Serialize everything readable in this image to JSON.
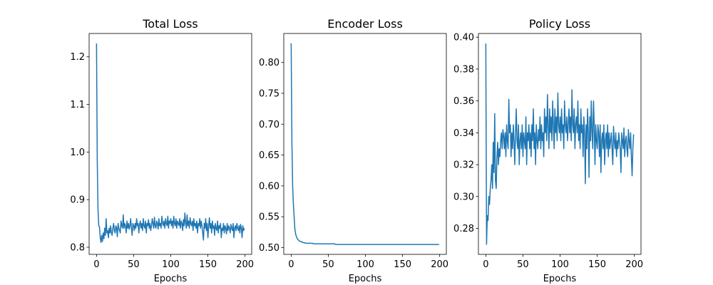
{
  "chart_data": [
    {
      "type": "line",
      "title": "Total Loss",
      "xlabel": "Epochs",
      "color": "#1f77b4",
      "xlim": [
        -9.95,
        208.95
      ],
      "xticks": [
        0,
        50,
        100,
        150,
        200
      ],
      "ylim": [
        0.785,
        1.249
      ],
      "yticks": [
        0.8,
        0.9,
        {
          "value": 1,
          "label": "1.0"
        },
        1.1,
        1.2
      ],
      "x": [
        0,
        1,
        2,
        3,
        4,
        5,
        6,
        7,
        8,
        9,
        10,
        11,
        12,
        13,
        14,
        15,
        16,
        17,
        18,
        19,
        20,
        21,
        22,
        23,
        24,
        25,
        26,
        27,
        28,
        29,
        30,
        31,
        32,
        33,
        34,
        35,
        36,
        37,
        38,
        39,
        40,
        41,
        42,
        43,
        44,
        45,
        46,
        47,
        48,
        49,
        50,
        51,
        52,
        53,
        54,
        55,
        56,
        57,
        58,
        59,
        60,
        61,
        62,
        63,
        64,
        65,
        66,
        67,
        68,
        69,
        70,
        71,
        72,
        73,
        74,
        75,
        76,
        77,
        78,
        79,
        80,
        81,
        82,
        83,
        84,
        85,
        86,
        87,
        88,
        89,
        90,
        91,
        92,
        93,
        94,
        95,
        96,
        97,
        98,
        99,
        100,
        101,
        102,
        103,
        104,
        105,
        106,
        107,
        108,
        109,
        110,
        111,
        112,
        113,
        114,
        115,
        116,
        117,
        118,
        119,
        120,
        121,
        122,
        123,
        124,
        125,
        126,
        127,
        128,
        129,
        130,
        131,
        132,
        133,
        134,
        135,
        136,
        137,
        138,
        139,
        140,
        141,
        142,
        143,
        144,
        145,
        146,
        147,
        148,
        149,
        150,
        151,
        152,
        153,
        154,
        155,
        156,
        157,
        158,
        159,
        160,
        161,
        162,
        163,
        164,
        165,
        166,
        167,
        168,
        169,
        170,
        171,
        172,
        173,
        174,
        175,
        176,
        177,
        178,
        179,
        180,
        181,
        182,
        183,
        184,
        185,
        186,
        187,
        188,
        189,
        190,
        191,
        192,
        193,
        194,
        195,
        196,
        197,
        198,
        199
      ],
      "values": [
        1.228,
        0.98,
        0.88,
        0.845,
        0.843,
        0.82,
        0.81,
        0.825,
        0.812,
        0.83,
        0.818,
        0.84,
        0.825,
        0.86,
        0.83,
        0.835,
        0.82,
        0.84,
        0.83,
        0.845,
        0.83,
        0.825,
        0.84,
        0.85,
        0.835,
        0.83,
        0.845,
        0.84,
        0.822,
        0.85,
        0.84,
        0.835,
        0.83,
        0.855,
        0.845,
        0.84,
        0.868,
        0.84,
        0.85,
        0.845,
        0.83,
        0.855,
        0.84,
        0.85,
        0.838,
        0.845,
        0.86,
        0.84,
        0.825,
        0.85,
        0.845,
        0.835,
        0.85,
        0.84,
        0.86,
        0.845,
        0.85,
        0.83,
        0.848,
        0.855,
        0.84,
        0.85,
        0.835,
        0.86,
        0.845,
        0.84,
        0.855,
        0.83,
        0.85,
        0.845,
        0.858,
        0.84,
        0.85,
        0.835,
        0.845,
        0.86,
        0.85,
        0.84,
        0.863,
        0.845,
        0.84,
        0.855,
        0.85,
        0.838,
        0.86,
        0.845,
        0.85,
        0.84,
        0.865,
        0.85,
        0.845,
        0.855,
        0.84,
        0.86,
        0.85,
        0.845,
        0.865,
        0.84,
        0.855,
        0.85,
        0.86,
        0.845,
        0.855,
        0.84,
        0.865,
        0.85,
        0.845,
        0.86,
        0.84,
        0.855,
        0.85,
        0.845,
        0.86,
        0.84,
        0.855,
        0.85,
        0.835,
        0.858,
        0.845,
        0.872,
        0.85,
        0.84,
        0.868,
        0.845,
        0.855,
        0.84,
        0.862,
        0.85,
        0.845,
        0.855,
        0.835,
        0.86,
        0.845,
        0.85,
        0.84,
        0.855,
        0.83,
        0.85,
        0.845,
        0.86,
        0.84,
        0.855,
        0.845,
        0.83,
        0.815,
        0.85,
        0.84,
        0.86,
        0.835,
        0.85,
        0.82,
        0.845,
        0.862,
        0.84,
        0.85,
        0.83,
        0.855,
        0.84,
        0.845,
        0.825,
        0.85,
        0.84,
        0.835,
        0.855,
        0.83,
        0.845,
        0.84,
        0.85,
        0.82,
        0.84,
        0.835,
        0.85,
        0.83,
        0.845,
        0.84,
        0.828,
        0.85,
        0.835,
        0.845,
        0.84,
        0.83,
        0.848,
        0.84,
        0.835,
        0.85,
        0.82,
        0.84,
        0.845,
        0.835,
        0.85,
        0.84,
        0.835,
        0.845,
        0.83,
        0.848,
        0.84,
        0.82,
        0.845,
        0.835,
        0.84
      ]
    },
    {
      "type": "line",
      "title": "Encoder Loss",
      "xlabel": "Epochs",
      "color": "#1f77b4",
      "xlim": [
        -9.95,
        208.95
      ],
      "xticks": [
        0,
        50,
        100,
        150,
        200
      ],
      "ylim": [
        0.489,
        0.847
      ],
      "yticks": [
        {
          "value": 0.5,
          "label": "0.50"
        },
        0.55,
        {
          "value": 0.6,
          "label": "0.60"
        },
        0.65,
        {
          "value": 0.7,
          "label": "0.70"
        },
        0.75,
        {
          "value": 0.8,
          "label": "0.80"
        }
      ],
      "x": [
        0,
        1,
        2,
        3,
        4,
        5,
        6,
        7,
        8,
        9,
        10,
        11,
        12,
        13,
        14,
        15,
        16,
        17,
        18,
        19,
        20,
        21,
        22,
        23,
        24,
        25,
        26,
        27,
        28,
        29,
        30,
        31,
        32,
        33,
        34,
        35,
        36,
        37,
        38,
        39,
        40,
        41,
        42,
        43,
        44,
        45,
        46,
        47,
        48,
        49,
        50,
        51,
        52,
        53,
        54,
        55,
        56,
        57,
        58,
        59,
        60,
        61,
        62,
        63,
        64,
        65,
        66,
        67,
        68,
        69,
        70,
        71,
        72,
        73,
        74,
        75,
        76,
        77,
        78,
        79,
        80,
        81,
        82,
        83,
        84,
        85,
        86,
        87,
        88,
        89,
        90,
        91,
        92,
        93,
        94,
        95,
        96,
        97,
        98,
        99,
        100,
        101,
        102,
        103,
        104,
        105,
        106,
        107,
        108,
        109,
        110,
        111,
        112,
        113,
        114,
        115,
        116,
        117,
        118,
        119,
        120,
        121,
        122,
        123,
        124,
        125,
        126,
        127,
        128,
        129,
        130,
        131,
        132,
        133,
        134,
        135,
        136,
        137,
        138,
        139,
        140,
        141,
        142,
        143,
        144,
        145,
        146,
        147,
        148,
        149,
        150,
        151,
        152,
        153,
        154,
        155,
        156,
        157,
        158,
        159,
        160,
        161,
        162,
        163,
        164,
        165,
        166,
        167,
        168,
        169,
        170,
        171,
        172,
        173,
        174,
        175,
        176,
        177,
        178,
        179,
        180,
        181,
        182,
        183,
        184,
        185,
        186,
        187,
        188,
        189,
        190,
        191,
        192,
        193,
        194,
        195,
        196,
        197,
        198,
        199
      ],
      "values": [
        0.831,
        0.67,
        0.6,
        0.57,
        0.55,
        0.53,
        0.522,
        0.518,
        0.515,
        0.513,
        0.512,
        0.511,
        0.51,
        0.51,
        0.509,
        0.509,
        0.508,
        0.508,
        0.508,
        0.507,
        0.507,
        0.507,
        0.507,
        0.507,
        0.507,
        0.507,
        0.507,
        0.507,
        0.507,
        0.507,
        0.506,
        0.506,
        0.506,
        0.506,
        0.506,
        0.506,
        0.506,
        0.506,
        0.506,
        0.506,
        0.506,
        0.506,
        0.506,
        0.506,
        0.506,
        0.506,
        0.506,
        0.506,
        0.506,
        0.506,
        0.506,
        0.506,
        0.506,
        0.506,
        0.506,
        0.506,
        0.506,
        0.506,
        0.506,
        0.506,
        0.505,
        0.505,
        0.505,
        0.505,
        0.505,
        0.505,
        0.505,
        0.505,
        0.505,
        0.505,
        0.505,
        0.505,
        0.505,
        0.505,
        0.505,
        0.505,
        0.505,
        0.505,
        0.505,
        0.505,
        0.505,
        0.505,
        0.505,
        0.505,
        0.505,
        0.505,
        0.505,
        0.505,
        0.505,
        0.505,
        0.505,
        0.505,
        0.505,
        0.505,
        0.505,
        0.505,
        0.505,
        0.505,
        0.505,
        0.505,
        0.505,
        0.505,
        0.505,
        0.505,
        0.505,
        0.505,
        0.505,
        0.505,
        0.505,
        0.505,
        0.505,
        0.505,
        0.505,
        0.505,
        0.505,
        0.505,
        0.505,
        0.505,
        0.505,
        0.505,
        0.505,
        0.505,
        0.505,
        0.505,
        0.505,
        0.505,
        0.505,
        0.505,
        0.505,
        0.505,
        0.505,
        0.505,
        0.505,
        0.505,
        0.505,
        0.505,
        0.505,
        0.505,
        0.505,
        0.505,
        0.505,
        0.505,
        0.505,
        0.505,
        0.505,
        0.505,
        0.505,
        0.505,
        0.505,
        0.505,
        0.505,
        0.505,
        0.505,
        0.505,
        0.505,
        0.505,
        0.505,
        0.505,
        0.505,
        0.505,
        0.505,
        0.505,
        0.505,
        0.505,
        0.505,
        0.505,
        0.505,
        0.505,
        0.505,
        0.505,
        0.505,
        0.505,
        0.505,
        0.505,
        0.505,
        0.505,
        0.505,
        0.505,
        0.505,
        0.505,
        0.505,
        0.505,
        0.505,
        0.505,
        0.505,
        0.505,
        0.505,
        0.505,
        0.505,
        0.505,
        0.505,
        0.505,
        0.505,
        0.505,
        0.505,
        0.505,
        0.505,
        0.505,
        0.505,
        0.505
      ]
    },
    {
      "type": "line",
      "title": "Policy Loss",
      "xlabel": "Epochs",
      "color": "#1f77b4",
      "xlim": [
        -9.95,
        208.95
      ],
      "xticks": [
        0,
        50,
        100,
        150,
        200
      ],
      "ylim": [
        0.2637,
        0.4023
      ],
      "yticks": [
        0.28,
        {
          "value": 0.3,
          "label": "0.30"
        },
        0.32,
        0.34,
        0.36,
        0.38,
        {
          "value": 0.4,
          "label": "0.40"
        }
      ],
      "x": [
        0,
        1,
        2,
        3,
        4,
        5,
        6,
        7,
        8,
        9,
        10,
        11,
        12,
        13,
        14,
        15,
        16,
        17,
        18,
        19,
        20,
        21,
        22,
        23,
        24,
        25,
        26,
        27,
        28,
        29,
        30,
        31,
        32,
        33,
        34,
        35,
        36,
        37,
        38,
        39,
        40,
        41,
        42,
        43,
        44,
        45,
        46,
        47,
        48,
        49,
        50,
        51,
        52,
        53,
        54,
        55,
        56,
        57,
        58,
        59,
        60,
        61,
        62,
        63,
        64,
        65,
        66,
        67,
        68,
        69,
        70,
        71,
        72,
        73,
        74,
        75,
        76,
        77,
        78,
        79,
        80,
        81,
        82,
        83,
        84,
        85,
        86,
        87,
        88,
        89,
        90,
        91,
        92,
        93,
        94,
        95,
        96,
        97,
        98,
        99,
        100,
        101,
        102,
        103,
        104,
        105,
        106,
        107,
        108,
        109,
        110,
        111,
        112,
        113,
        114,
        115,
        116,
        117,
        118,
        119,
        120,
        121,
        122,
        123,
        124,
        125,
        126,
        127,
        128,
        129,
        130,
        131,
        132,
        133,
        134,
        135,
        136,
        137,
        138,
        139,
        140,
        141,
        142,
        143,
        144,
        145,
        146,
        147,
        148,
        149,
        150,
        151,
        152,
        153,
        154,
        155,
        156,
        157,
        158,
        159,
        160,
        161,
        162,
        163,
        164,
        165,
        166,
        167,
        168,
        169,
        170,
        171,
        172,
        173,
        174,
        175,
        176,
        177,
        178,
        179,
        180,
        181,
        182,
        183,
        184,
        185,
        186,
        187,
        188,
        189,
        190,
        191,
        192,
        193,
        194,
        195,
        196,
        197,
        198,
        199
      ],
      "values": [
        0.396,
        0.27,
        0.288,
        0.285,
        0.3,
        0.295,
        0.305,
        0.31,
        0.32,
        0.305,
        0.334,
        0.315,
        0.352,
        0.31,
        0.305,
        0.325,
        0.334,
        0.32,
        0.33,
        0.325,
        0.335,
        0.34,
        0.33,
        0.342,
        0.338,
        0.33,
        0.34,
        0.325,
        0.345,
        0.335,
        0.33,
        0.361,
        0.34,
        0.345,
        0.325,
        0.34,
        0.33,
        0.345,
        0.335,
        0.32,
        0.34,
        0.355,
        0.335,
        0.33,
        0.345,
        0.32,
        0.335,
        0.34,
        0.33,
        0.345,
        0.325,
        0.34,
        0.335,
        0.33,
        0.35,
        0.32,
        0.34,
        0.335,
        0.345,
        0.33,
        0.34,
        0.325,
        0.345,
        0.335,
        0.355,
        0.33,
        0.34,
        0.32,
        0.345,
        0.335,
        0.33,
        0.342,
        0.335,
        0.35,
        0.33,
        0.345,
        0.335,
        0.34,
        0.325,
        0.355,
        0.34,
        0.35,
        0.335,
        0.364,
        0.345,
        0.33,
        0.355,
        0.34,
        0.35,
        0.335,
        0.36,
        0.345,
        0.33,
        0.355,
        0.34,
        0.35,
        0.335,
        0.365,
        0.345,
        0.34,
        0.35,
        0.335,
        0.355,
        0.34,
        0.345,
        0.33,
        0.36,
        0.345,
        0.34,
        0.35,
        0.335,
        0.345,
        0.355,
        0.34,
        0.35,
        0.335,
        0.367,
        0.345,
        0.34,
        0.355,
        0.33,
        0.345,
        0.35,
        0.34,
        0.36,
        0.335,
        0.345,
        0.33,
        0.355,
        0.34,
        0.345,
        0.325,
        0.35,
        0.34,
        0.308,
        0.345,
        0.33,
        0.355,
        0.34,
        0.312,
        0.35,
        0.335,
        0.36,
        0.34,
        0.33,
        0.36,
        0.345,
        0.32,
        0.345,
        0.335,
        0.33,
        0.345,
        0.34,
        0.325,
        0.345,
        0.315,
        0.335,
        0.34,
        0.33,
        0.345,
        0.32,
        0.335,
        0.34,
        0.33,
        0.345,
        0.325,
        0.34,
        0.33,
        0.335,
        0.34,
        0.33,
        0.32,
        0.344,
        0.335,
        0.33,
        0.34,
        0.325,
        0.335,
        0.33,
        0.34,
        0.335,
        0.33,
        0.315,
        0.34,
        0.335,
        0.33,
        0.343,
        0.325,
        0.335,
        0.338,
        0.33,
        0.325,
        0.342,
        0.335,
        0.33,
        0.34,
        0.325,
        0.313,
        0.33,
        0.339
      ]
    }
  ]
}
